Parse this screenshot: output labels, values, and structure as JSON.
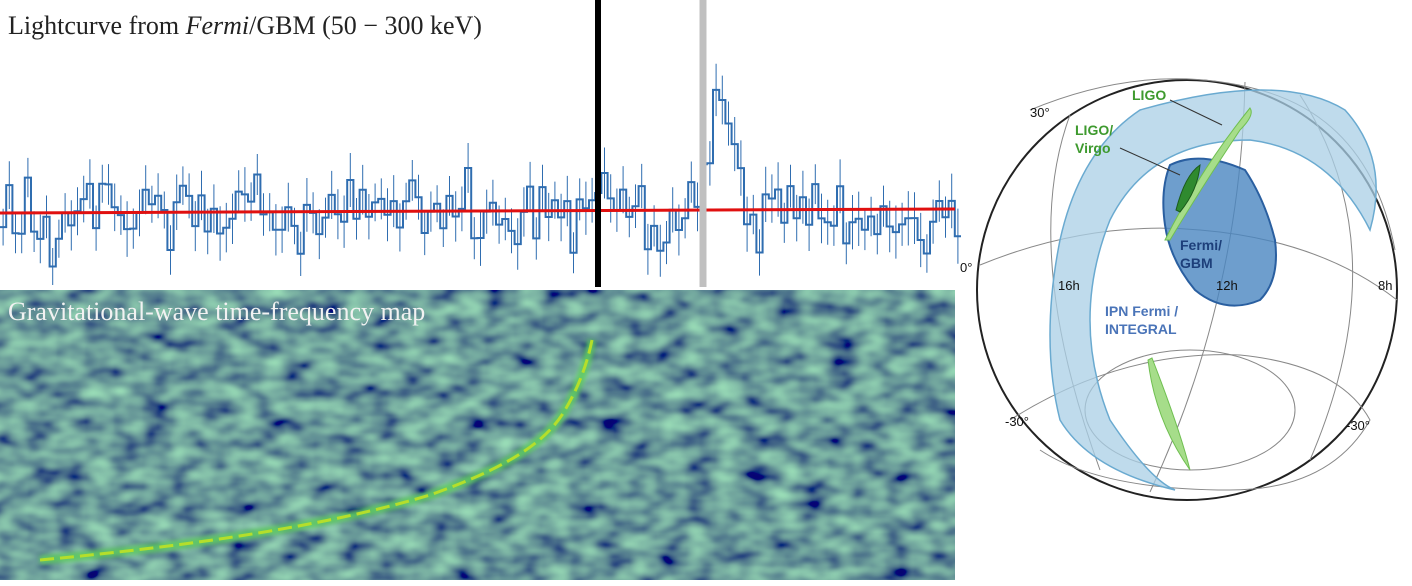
{
  "lightcurve": {
    "title_prefix": "Lightcurve from ",
    "title_italic": "Fermi",
    "title_suffix": "/GBM (50 − 300 keV)"
  },
  "spectrogram": {
    "title": "Gravitational-wave time-frequency map"
  },
  "skymap": {
    "dec_labels": [
      "30°",
      "0°",
      "-30°",
      "-30°"
    ],
    "ra_labels": [
      "16h",
      "12h",
      "8h"
    ],
    "regions": {
      "ligo": "LIGO",
      "ligo_virgo": [
        "LIGO/",
        "Virgo"
      ],
      "fermi_gbm": [
        "Fermi/",
        "GBM"
      ],
      "ipn": [
        "IPN Fermi /",
        "INTEGRAL"
      ]
    }
  }
}
